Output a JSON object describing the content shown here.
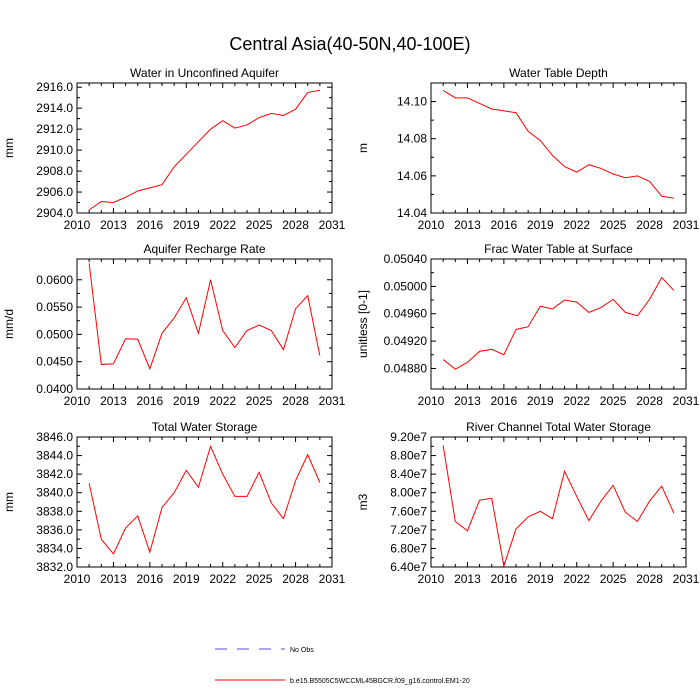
{
  "figure": {
    "title": "Central Asia(40-50N,40-100E)",
    "legend": [
      {
        "label": "No Obs",
        "color": "#5b4fd6",
        "dash": "dashed"
      },
      {
        "label": "b.e15.B5505C5WCCML45BGCR.f09_g16.control.EM1-20",
        "color": "#ff0000",
        "dash": "solid"
      }
    ],
    "line_color": "#ff0000"
  },
  "chart_data": [
    {
      "type": "line",
      "title": "Water in Unconfined Aquifer",
      "ylabel": "mm",
      "xlim": [
        2010,
        2031
      ],
      "ylim": [
        2904,
        2916.4
      ],
      "x_ticks": [
        "2010",
        "2013",
        "2016",
        "2019",
        "2022",
        "2025",
        "2028",
        "2031"
      ],
      "y_ticks": [
        "2904.0",
        "2906.0",
        "2908.0",
        "2910.0",
        "2912.0",
        "2914.0",
        "2916.0"
      ],
      "x": [
        2011,
        2012,
        2013,
        2014,
        2015,
        2016,
        2017,
        2018,
        2019,
        2020,
        2021,
        2022,
        2023,
        2024,
        2025,
        2026,
        2027,
        2028,
        2029,
        2030
      ],
      "values": [
        2904.3,
        2905.1,
        2905.0,
        2905.5,
        2906.1,
        2906.4,
        2906.7,
        2908.4,
        2909.6,
        2910.8,
        2912.0,
        2912.8,
        2912.1,
        2912.4,
        2913.1,
        2913.5,
        2913.3,
        2913.9,
        2915.5,
        2915.7
      ]
    },
    {
      "type": "line",
      "title": "Water Table Depth",
      "ylabel": "m",
      "xlim": [
        2010,
        2031
      ],
      "ylim": [
        14.04,
        14.11
      ],
      "x_ticks": [
        "2010",
        "2013",
        "2016",
        "2019",
        "2022",
        "2025",
        "2028",
        "2031"
      ],
      "y_ticks": [
        "14.04",
        "14.06",
        "14.08",
        "14.10"
      ],
      "x": [
        2011,
        2012,
        2013,
        2014,
        2015,
        2016,
        2017,
        2018,
        2019,
        2020,
        2021,
        2022,
        2023,
        2024,
        2025,
        2026,
        2027,
        2028,
        2029,
        2030
      ],
      "values": [
        14.106,
        14.102,
        14.102,
        14.099,
        14.096,
        14.095,
        14.094,
        14.084,
        14.079,
        14.071,
        14.065,
        14.062,
        14.066,
        14.064,
        14.061,
        14.059,
        14.06,
        14.057,
        14.049,
        14.048
      ]
    },
    {
      "type": "line",
      "title": "Aquifer Recharge Rate",
      "ylabel": "mm/d",
      "xlim": [
        2010,
        2031
      ],
      "ylim": [
        0.04,
        0.0638
      ],
      "x_ticks": [
        "2010",
        "2013",
        "2016",
        "2019",
        "2022",
        "2025",
        "2028",
        "2031"
      ],
      "y_ticks": [
        "0.0400",
        "0.0450",
        "0.0500",
        "0.0550",
        "0.0600"
      ],
      "x": [
        2011,
        2012,
        2013,
        2014,
        2015,
        2016,
        2017,
        2018,
        2019,
        2020,
        2021,
        2022,
        2023,
        2024,
        2025,
        2026,
        2027,
        2028,
        2029,
        2030
      ],
      "values": [
        0.063,
        0.0445,
        0.0446,
        0.0492,
        0.0491,
        0.0437,
        0.0502,
        0.053,
        0.0567,
        0.0502,
        0.06,
        0.0507,
        0.0476,
        0.0507,
        0.0517,
        0.0507,
        0.0472,
        0.0547,
        0.0571,
        0.0461
      ]
    },
    {
      "type": "line",
      "title": "Frac Water Table at Surface",
      "ylabel": "unitless [0-1]",
      "xlim": [
        2010,
        2031
      ],
      "ylim": [
        0.0485,
        0.0504
      ],
      "x_ticks": [
        "2010",
        "2013",
        "2016",
        "2019",
        "2022",
        "2025",
        "2028",
        "2031"
      ],
      "y_ticks": [
        "0.04880",
        "0.04920",
        "0.04960",
        "0.05000",
        "0.05040"
      ],
      "x": [
        2011,
        2012,
        2013,
        2014,
        2015,
        2016,
        2017,
        2018,
        2019,
        2020,
        2021,
        2022,
        2023,
        2024,
        2025,
        2026,
        2027,
        2028,
        2029,
        2030
      ],
      "values": [
        0.04893,
        0.04879,
        0.04889,
        0.04905,
        0.04908,
        0.049,
        0.04937,
        0.04941,
        0.04971,
        0.04967,
        0.0498,
        0.04977,
        0.04962,
        0.04969,
        0.04981,
        0.04962,
        0.04957,
        0.04981,
        0.05013,
        0.04994
      ]
    },
    {
      "type": "line",
      "title": "Total Water Storage",
      "ylabel": "mm",
      "xlim": [
        2010,
        2031
      ],
      "ylim": [
        3832,
        3846
      ],
      "x_ticks": [
        "2010",
        "2013",
        "2016",
        "2019",
        "2022",
        "2025",
        "2028",
        "2031"
      ],
      "y_ticks": [
        "3832.0",
        "3834.0",
        "3836.0",
        "3838.0",
        "3840.0",
        "3842.0",
        "3844.0",
        "3846.0"
      ],
      "x": [
        2011,
        2012,
        2013,
        2014,
        2015,
        2016,
        2017,
        2018,
        2019,
        2020,
        2021,
        2022,
        2023,
        2024,
        2025,
        2026,
        2027,
        2028,
        2029,
        2030
      ],
      "values": [
        3841.0,
        3835.0,
        3833.4,
        3836.2,
        3837.5,
        3833.6,
        3838.4,
        3840.0,
        3842.4,
        3840.6,
        3845.0,
        3842.0,
        3839.6,
        3839.6,
        3842.2,
        3838.9,
        3837.2,
        3841.3,
        3844.1,
        3841.1
      ]
    },
    {
      "type": "line",
      "title": "River Channel Total Water Storage",
      "ylabel": "m3",
      "xlim": [
        2010,
        2031
      ],
      "ylim": [
        64000000.0,
        92000000.0
      ],
      "x_ticks": [
        "2010",
        "2013",
        "2016",
        "2019",
        "2022",
        "2025",
        "2028",
        "2031"
      ],
      "y_ticks": [
        "6.40e7",
        "6.80e7",
        "7.20e7",
        "7.60e7",
        "8.00e7",
        "8.40e7",
        "8.80e7",
        "9.20e7"
      ],
      "x": [
        2011,
        2012,
        2013,
        2014,
        2015,
        2016,
        2017,
        2018,
        2019,
        2020,
        2021,
        2022,
        2023,
        2024,
        2025,
        2026,
        2027,
        2028,
        2029,
        2030
      ],
      "values": [
        90200000.0,
        73800000.0,
        71800000.0,
        78400000.0,
        78800000.0,
        64200000.0,
        72200000.0,
        74800000.0,
        76000000.0,
        74400000.0,
        84600000.0,
        79200000.0,
        74000000.0,
        78200000.0,
        81600000.0,
        75800000.0,
        73800000.0,
        78200000.0,
        81400000.0,
        75600000.0
      ]
    }
  ]
}
